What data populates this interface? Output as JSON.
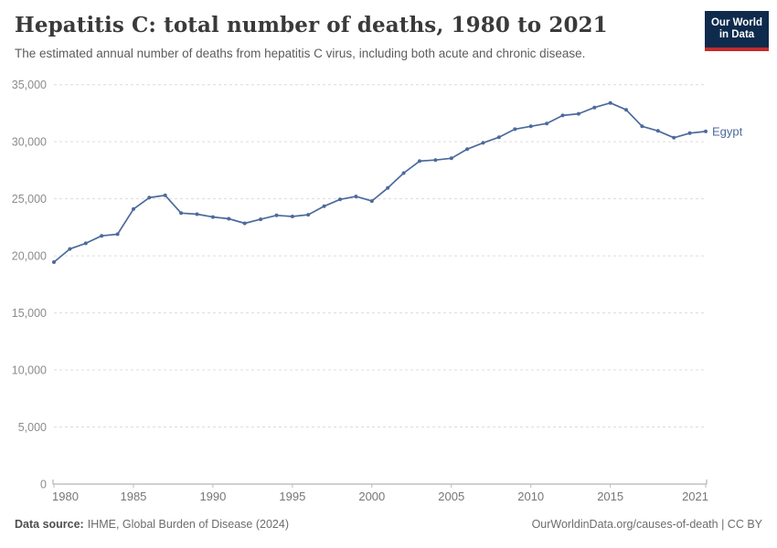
{
  "header": {
    "title": "Hepatitis C: total number of deaths, 1980 to 2021",
    "subtitle": "The estimated annual number of deaths from hepatitis C virus, including both acute and chronic disease.",
    "logo": {
      "line1": "Our World",
      "line2": "in Data",
      "bg_color": "#0e2a4c",
      "accent_color": "#c32b2b"
    }
  },
  "chart_data": {
    "type": "line",
    "title": "Hepatitis C: total number of deaths, 1980 to 2021",
    "x": [
      1980,
      1981,
      1982,
      1983,
      1984,
      1985,
      1986,
      1987,
      1988,
      1989,
      1990,
      1991,
      1992,
      1993,
      1994,
      1995,
      1996,
      1997,
      1998,
      1999,
      2000,
      2001,
      2002,
      2003,
      2004,
      2005,
      2006,
      2007,
      2008,
      2009,
      2010,
      2011,
      2012,
      2013,
      2014,
      2015,
      2016,
      2017,
      2018,
      2019,
      2020,
      2021
    ],
    "series": [
      {
        "name": "Egypt",
        "color": "#4c6a9c",
        "values": [
          19450,
          20600,
          21100,
          21750,
          21900,
          24100,
          25100,
          25300,
          23750,
          23650,
          23400,
          23250,
          22850,
          23200,
          23550,
          23450,
          23600,
          24350,
          24950,
          25200,
          24800,
          25950,
          27250,
          28300,
          28400,
          28550,
          29350,
          29900,
          30400,
          31100,
          31350,
          31600,
          32300,
          32450,
          33000,
          33400,
          32800,
          31350,
          30950,
          30350,
          30750,
          30900
        ]
      }
    ],
    "xlabel": "",
    "ylabel": "",
    "xlim": [
      1980,
      2021
    ],
    "ylim": [
      0,
      35000
    ],
    "yticks": [
      0,
      5000,
      10000,
      15000,
      20000,
      25000,
      30000,
      35000
    ],
    "ytick_labels": [
      "0",
      "5,000",
      "10,000",
      "15,000",
      "20,000",
      "25,000",
      "30,000",
      "35,000"
    ],
    "xticks": [
      1980,
      1985,
      1990,
      1995,
      2000,
      2005,
      2010,
      2015,
      2021
    ],
    "xtick_labels": [
      "1980",
      "1985",
      "1990",
      "1995",
      "2000",
      "2005",
      "2010",
      "2015",
      "2021"
    ],
    "grid": "horizontal-dashed",
    "legend_position": "end-of-line-label",
    "end_label": "Egypt",
    "marker": "dot"
  },
  "footer": {
    "source_label": "Data source:",
    "source_text": "IHME, Global Burden of Disease (2024)",
    "link_text": "OurWorldinData.org/causes-of-death | CC BY"
  }
}
